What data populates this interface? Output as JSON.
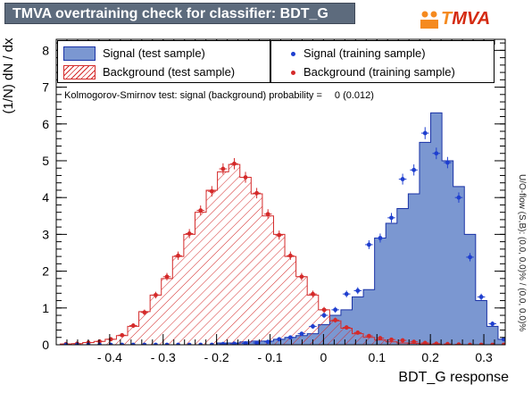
{
  "title": "TMVA overtraining check for classifier: BDT_G",
  "logo": {
    "text_t": "T",
    "text_rest": "MVA"
  },
  "chart_data": {
    "type": "histogram",
    "xlabel": "BDT_G response",
    "ylabel": "(1/N) dN / dx",
    "xlim": [
      -0.5,
      0.34
    ],
    "ylim": [
      0,
      8.3
    ],
    "xticks": [
      -0.4,
      -0.3,
      -0.2,
      -0.1,
      0,
      0.1,
      0.2,
      0.3
    ],
    "yticks": [
      0,
      1,
      2,
      3,
      4,
      5,
      6,
      7,
      8
    ],
    "bin_edges": [
      -0.4924,
      -0.4714,
      -0.4504,
      -0.4294,
      -0.4084,
      -0.3874,
      -0.3664,
      -0.3454,
      -0.3244,
      -0.3034,
      -0.2824,
      -0.2614,
      -0.2404,
      -0.2194,
      -0.1984,
      -0.1774,
      -0.1564,
      -0.1354,
      -0.1144,
      -0.0934,
      -0.0724,
      -0.0514,
      -0.0304,
      -0.0094,
      0.0116,
      0.0326,
      0.0536,
      0.0746,
      0.0956,
      0.1166,
      0.1376,
      0.1586,
      0.1796,
      0.2006,
      0.2216,
      0.2426,
      0.2636,
      0.2846,
      0.3056,
      0.3266,
      0.3476
    ],
    "series": [
      {
        "name": "Signal (test sample)",
        "style": "filled",
        "values": [
          0,
          0,
          0,
          0,
          0,
          0,
          0,
          0,
          0,
          0,
          0,
          0,
          0,
          0,
          0.05,
          0.05,
          0.08,
          0.1,
          0.1,
          0.15,
          0.2,
          0.25,
          0.3,
          0.55,
          0.8,
          0.95,
          1.3,
          1.5,
          2.9,
          3.3,
          3.7,
          4.1,
          5.5,
          6.3,
          5.0,
          4.3,
          3.0,
          1.2,
          0.5,
          0.15
        ]
      },
      {
        "name": "Background (test sample)",
        "style": "hatched",
        "values": [
          0.02,
          0.03,
          0.06,
          0.09,
          0.15,
          0.25,
          0.5,
          0.9,
          1.35,
          1.8,
          2.4,
          3.0,
          3.6,
          4.2,
          4.7,
          4.9,
          4.55,
          4.1,
          3.5,
          3.0,
          2.4,
          1.85,
          1.35,
          0.95,
          0.65,
          0.45,
          0.3,
          0.2,
          0.13,
          0.08,
          0.05,
          0.04,
          0.02,
          0.01,
          0,
          0,
          0,
          0,
          0,
          0
        ]
      },
      {
        "name": "Signal (training sample)",
        "style": "points",
        "values": [
          0,
          0,
          0,
          0,
          0,
          0,
          0,
          0,
          0,
          0,
          0,
          0,
          0,
          0,
          0.02,
          0.03,
          0.04,
          0.05,
          0.08,
          0.15,
          0.2,
          0.3,
          0.5,
          0.8,
          0.95,
          1.38,
          1.47,
          2.72,
          2.9,
          3.45,
          4.5,
          4.75,
          5.75,
          5.2,
          4.95,
          4.0,
          2.38,
          1.3,
          0.57,
          0.15
        ]
      },
      {
        "name": "Background (training sample)",
        "style": "points",
        "values": [
          0.02,
          0.03,
          0.06,
          0.09,
          0.15,
          0.26,
          0.52,
          0.88,
          1.35,
          1.85,
          2.42,
          3.02,
          3.65,
          4.17,
          4.78,
          4.92,
          4.55,
          4.12,
          3.55,
          2.98,
          2.42,
          1.85,
          1.38,
          0.95,
          0.67,
          0.47,
          0.33,
          0.24,
          0.18,
          0.14,
          0.12,
          0.08,
          0.05,
          0.03,
          0.02,
          0.01,
          0,
          0,
          0,
          0
        ]
      }
    ],
    "legend": [
      {
        "label": "Signal (test sample)"
      },
      {
        "label": "Background (test sample)"
      },
      {
        "label": "Signal (training sample)"
      },
      {
        "label": "Background (training sample)"
      }
    ]
  },
  "ks_text": "Kolmogorov-Smirnov test: signal (background) probability =",
  "ks_prob": "0 (0.012)",
  "overflow_text": "U/O-flow (S,B): (0.0, 0.0)% / (0.0, 0.0)%",
  "colors": {
    "signal_fill": "#7b97d1",
    "signal_line": "#1932a6",
    "signal_marker": "#1f3fcf",
    "background": "#d42a2a"
  }
}
